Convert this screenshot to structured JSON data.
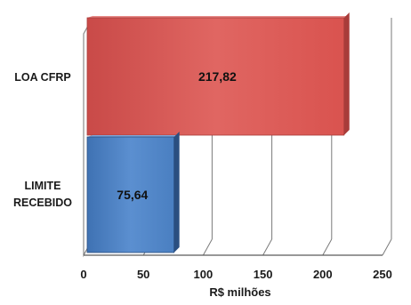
{
  "chart_data": {
    "type": "bar",
    "orientation": "horizontal",
    "three_d": true,
    "categories": [
      "LOA CFRP",
      "LIMITE RECEBIDO"
    ],
    "values": [
      217.82,
      75.64
    ],
    "value_labels": [
      "217,82",
      "75,64"
    ],
    "bar_colors": [
      "#d9534f",
      "#4a7fc1"
    ],
    "xlabel": "R$ milhões",
    "xlim": [
      0,
      250
    ],
    "xticks": [
      0,
      50,
      100,
      150,
      200,
      250
    ],
    "xtick_labels": [
      "0",
      "50",
      "100",
      "150",
      "200",
      "250"
    ],
    "grid": true,
    "legend": "none"
  }
}
